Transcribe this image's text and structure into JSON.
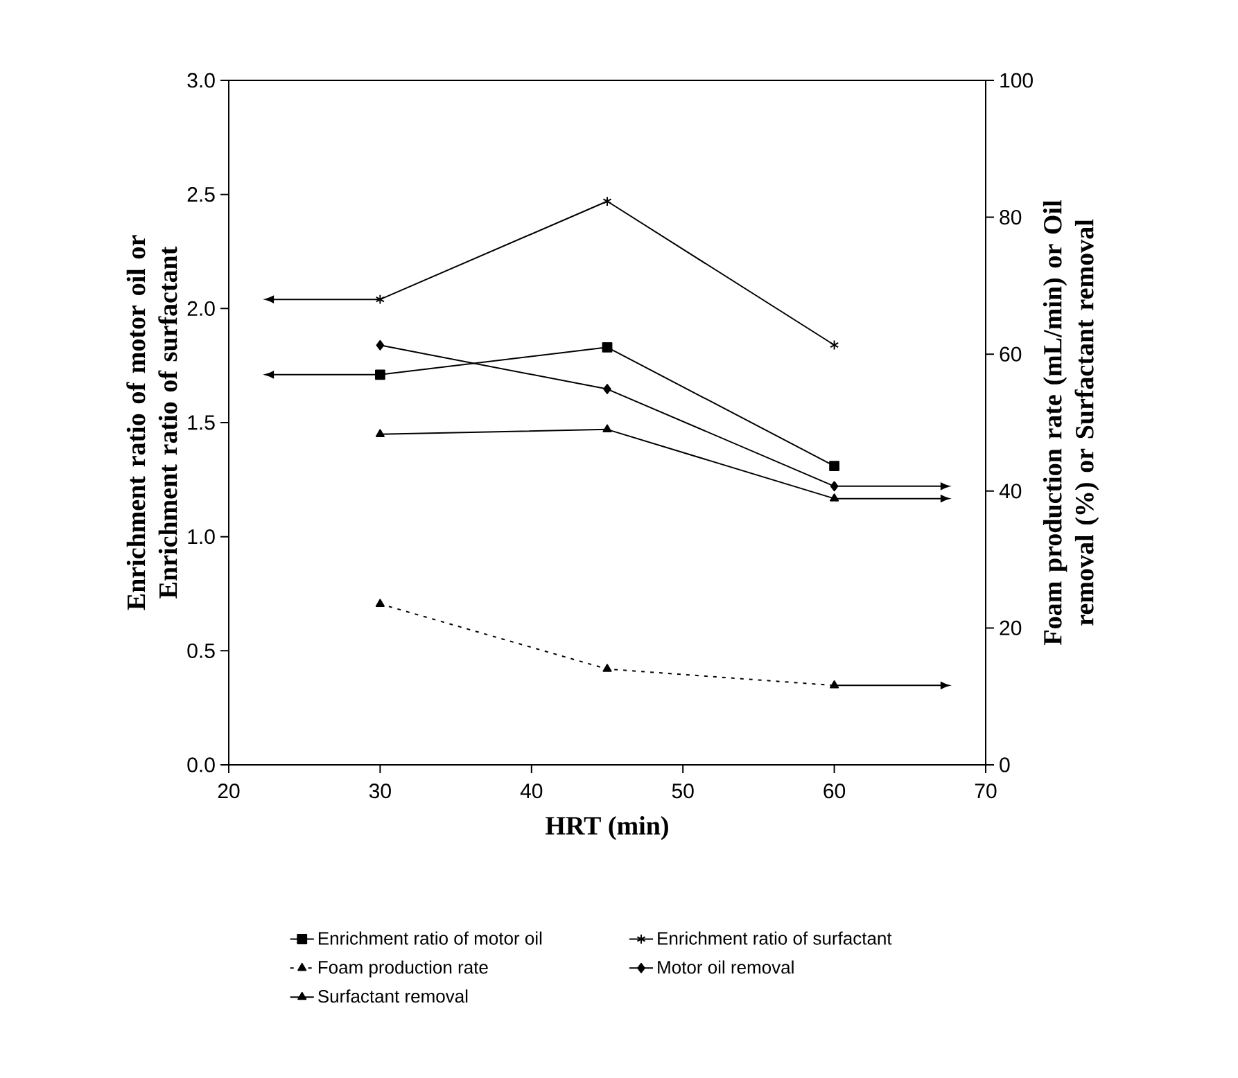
{
  "chart_data": {
    "type": "line",
    "xlabel": "HRT (min)",
    "ylabel": "Enrichment ratio of motor oil or Enrichment ratio of surfactant",
    "y2label": "Foam production rate (mL/min) or Oil removal (%) or Surfactant removal",
    "x": [
      30,
      45,
      60
    ],
    "xlim": [
      20,
      70
    ],
    "xticks": [
      20,
      30,
      40,
      50,
      60,
      70
    ],
    "ylim": [
      0,
      3
    ],
    "yticks": [
      {
        "value": 0,
        "label": "0.0"
      },
      {
        "value": 0.5,
        "label": "0.5"
      },
      {
        "value": 1,
        "label": "1.0"
      },
      {
        "value": 1.5,
        "label": "1.5"
      },
      {
        "value": 2,
        "label": "2.0"
      },
      {
        "value": 2.5,
        "label": "2.5"
      },
      {
        "value": 3,
        "label": "3.0"
      }
    ],
    "y2lim": [
      0,
      100
    ],
    "y2ticks": [
      0,
      20,
      40,
      60,
      80,
      100
    ],
    "legend": "bottom",
    "grid": false,
    "series": [
      {
        "name": "Enrichment ratio of motor oil",
        "color": "#000000",
        "values": [
          1.71,
          1.83,
          1.31
        ],
        "marker": "square",
        "line_style": "solid"
      },
      {
        "name": "Enrichment ratio of surfactant",
        "color": "#000000",
        "values": [
          2.04,
          2.47,
          1.84
        ],
        "marker": "cross",
        "line_style": "solid"
      },
      {
        "name": "Foam production rate",
        "color": "#000000",
        "values": [
          23.5,
          14,
          11.6
        ],
        "marker": "triangle",
        "line_style": "dotted",
        "axis": "y2"
      },
      {
        "name": "Motor oil removal",
        "color": "#000000",
        "values": [
          61.3,
          54.9,
          40.7
        ],
        "marker": "diamond",
        "line_style": "solid",
        "axis": "y2"
      },
      {
        "name": "Surfactant removal",
        "color": "#000000",
        "values": [
          48.3,
          49.0,
          38.9
        ],
        "marker": "triangle",
        "line_style": "solid",
        "axis": "y2"
      }
    ]
  }
}
